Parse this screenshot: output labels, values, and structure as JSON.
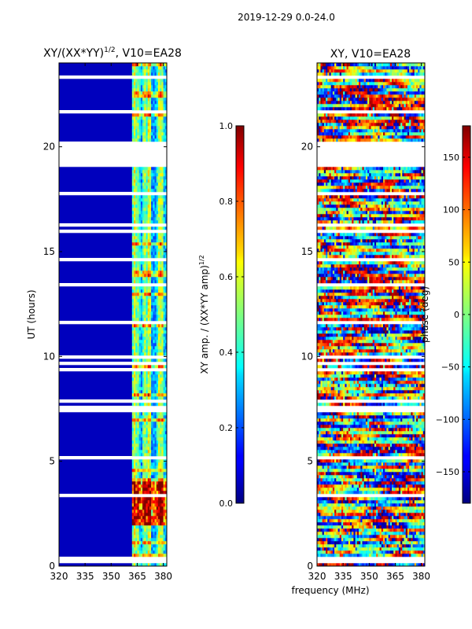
{
  "suptitle": "2019-12-29 0.0-24.0",
  "xlabel_shared": "frequency (MHz)",
  "chart_data": [
    {
      "type": "heatmap",
      "title": "XY/(XX*YY)^{1/2}, V10=EA28",
      "title_main": "XY/(XX*YY)",
      "title_sup": "1/2",
      "title_tail": ", V10=EA28",
      "xlabel": "frequency (MHz)",
      "ylabel": "UT (hours)",
      "xlim": [
        320,
        382
      ],
      "ylim": [
        0,
        24
      ],
      "xticks": [
        320,
        335,
        350,
        365,
        380
      ],
      "yticks": [
        0,
        5,
        10,
        15,
        20
      ],
      "colormap": "jet",
      "colorbar": {
        "label": "XY amp. / (XX*YY amp)^{1/2}",
        "label_main": "XY amp. / (XX*YY amp)",
        "label_sup": "1/2",
        "range": [
          0.0,
          1.0
        ],
        "ticks": [
          "0.0",
          "0.2",
          "0.4",
          "0.6",
          "0.8",
          "1.0"
        ]
      },
      "data_gaps_hours": [
        [
          19.2,
          20.3
        ],
        [
          0.2,
          0.5
        ],
        [
          7.3,
          7.5
        ],
        [
          14.5,
          14.7
        ]
      ],
      "description": "mostly near 0 below 362 MHz; elevated amplitude bands 362-382 MHz, strongest (0.8-1.0) near 2-4 UT"
    },
    {
      "type": "heatmap",
      "title": "XY, V10=EA28",
      "xlabel": "frequency (MHz)",
      "ylabel": "",
      "xlim": [
        320,
        382
      ],
      "ylim": [
        0,
        24
      ],
      "xticks": [
        320,
        335,
        350,
        365,
        380
      ],
      "yticks": [
        0,
        5,
        10,
        15,
        20
      ],
      "colormap": "jet",
      "colorbar": {
        "label": "phase (deg)",
        "range": [
          -180,
          180
        ],
        "ticks": [
          "−150",
          "−100",
          "−50",
          "0",
          "50",
          "100",
          "150"
        ]
      },
      "data_gaps_hours": [
        [
          19.2,
          20.3
        ],
        [
          0.2,
          0.5
        ],
        [
          7.3,
          7.5
        ],
        [
          14.5,
          14.7
        ]
      ],
      "description": "noisy phase spanning the full -180 to 180 range"
    }
  ]
}
